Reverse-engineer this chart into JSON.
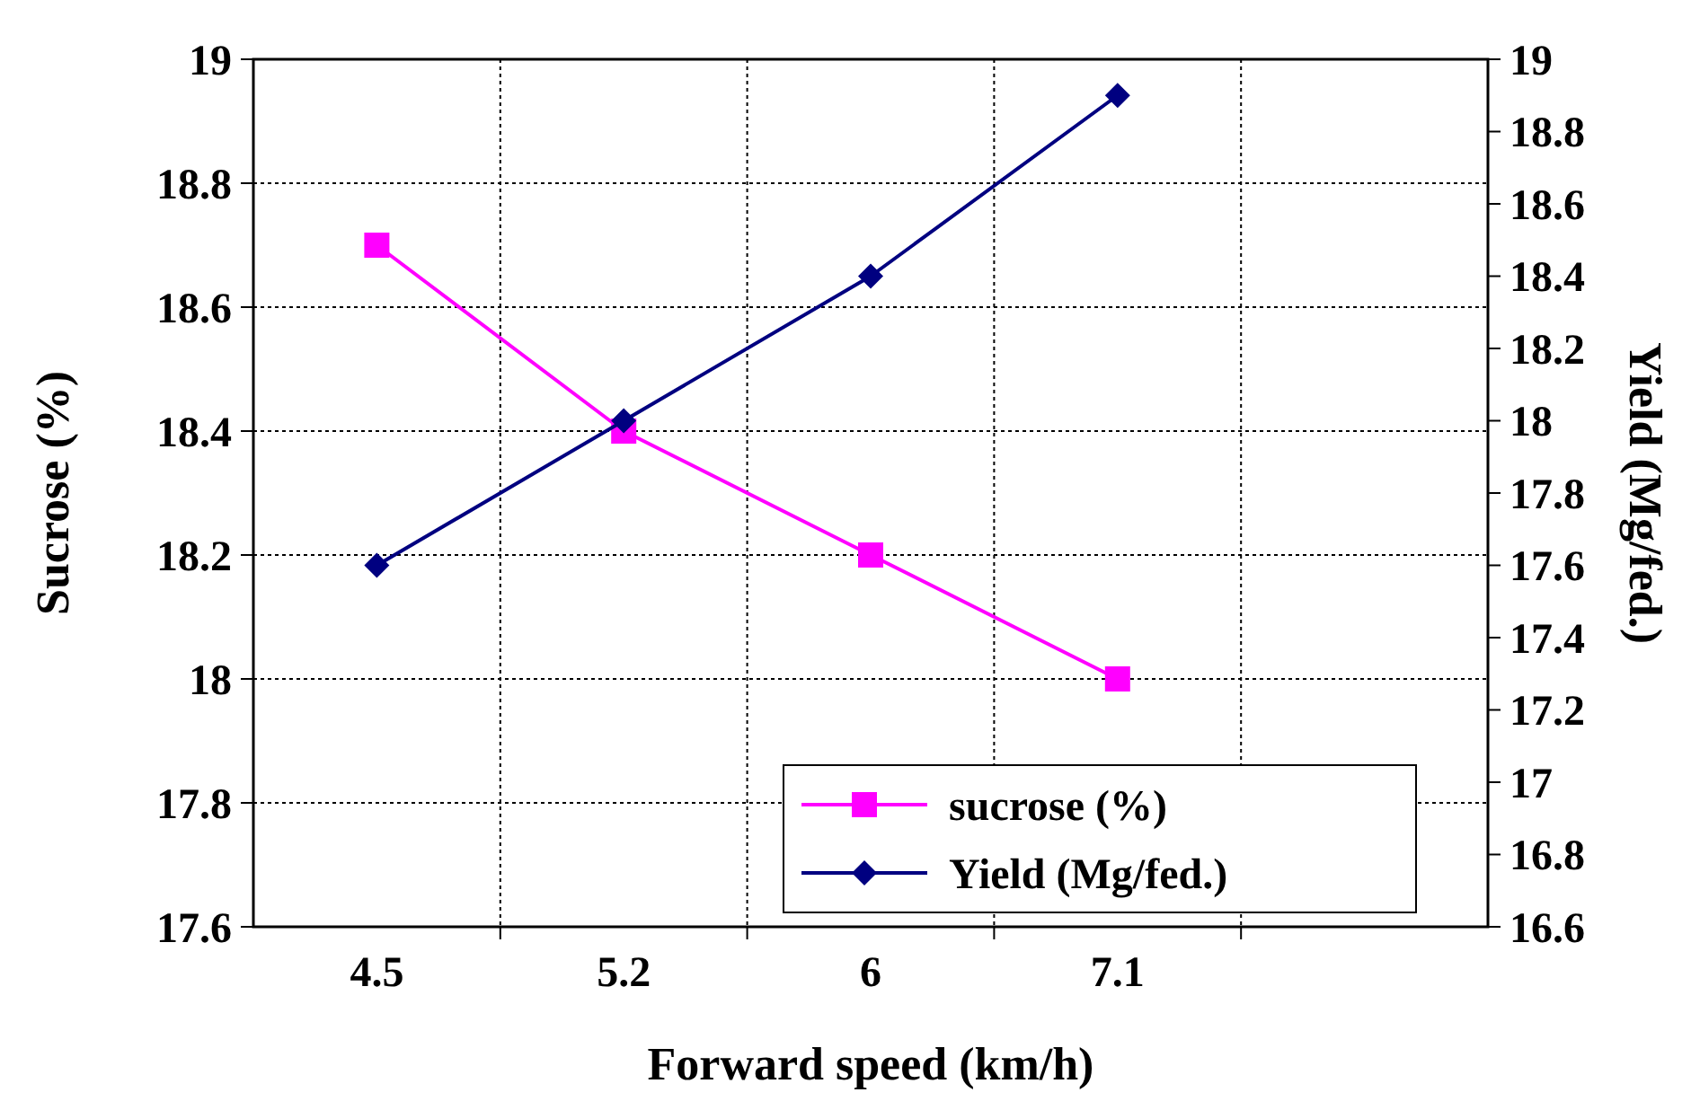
{
  "chart_data": {
    "type": "line",
    "xlabel": "Forward speed (km/h)",
    "ylabel": "Sucrose (%)",
    "y2label": "Yield (Mg/fed.)",
    "categories": [
      "4.5",
      "5.2",
      "6",
      "7.1",
      null
    ],
    "series": [
      {
        "name": "sucrose (%)",
        "color": "#ff00ff",
        "values": [
          18.7,
          18.4,
          18.2,
          18.0,
          null
        ],
        "marker": "square"
      },
      {
        "name": "Yield (Mg/fed.)",
        "color": "#000080",
        "values": [
          17.6,
          18.0,
          18.4,
          18.9,
          null
        ],
        "marker": "diamond",
        "axis": "y2"
      }
    ],
    "ylim": [
      17.6,
      19
    ],
    "yticks": [
      {
        "value": 17.6,
        "label": "17.6"
      },
      {
        "value": 17.8,
        "label": "17.8"
      },
      {
        "value": 18,
        "label": "18"
      },
      {
        "value": 18.2,
        "label": "18.2"
      },
      {
        "value": 18.4,
        "label": "18.4"
      },
      {
        "value": 18.6,
        "label": "18.6"
      },
      {
        "value": 18.8,
        "label": "18.8"
      },
      {
        "value": 19,
        "label": "19"
      }
    ],
    "y2lim": [
      16.6,
      19
    ],
    "y2ticks": [
      {
        "value": 16.6,
        "label": "16.6"
      },
      {
        "value": 16.8,
        "label": "16.8"
      },
      {
        "value": 17,
        "label": "17"
      },
      {
        "value": 17.2,
        "label": "17.2"
      },
      {
        "value": 17.4,
        "label": "17.4"
      },
      {
        "value": 17.6,
        "label": "17.6"
      },
      {
        "value": 17.8,
        "label": "17.8"
      },
      {
        "value": 18,
        "label": "18"
      },
      {
        "value": 18.2,
        "label": "18.2"
      },
      {
        "value": 18.4,
        "label": "18.4"
      },
      {
        "value": 18.6,
        "label": "18.6"
      },
      {
        "value": 18.8,
        "label": "18.8"
      },
      {
        "value": 19,
        "label": "19"
      }
    ],
    "grid": true,
    "legend": "bottom right",
    "line_style": "solid"
  }
}
